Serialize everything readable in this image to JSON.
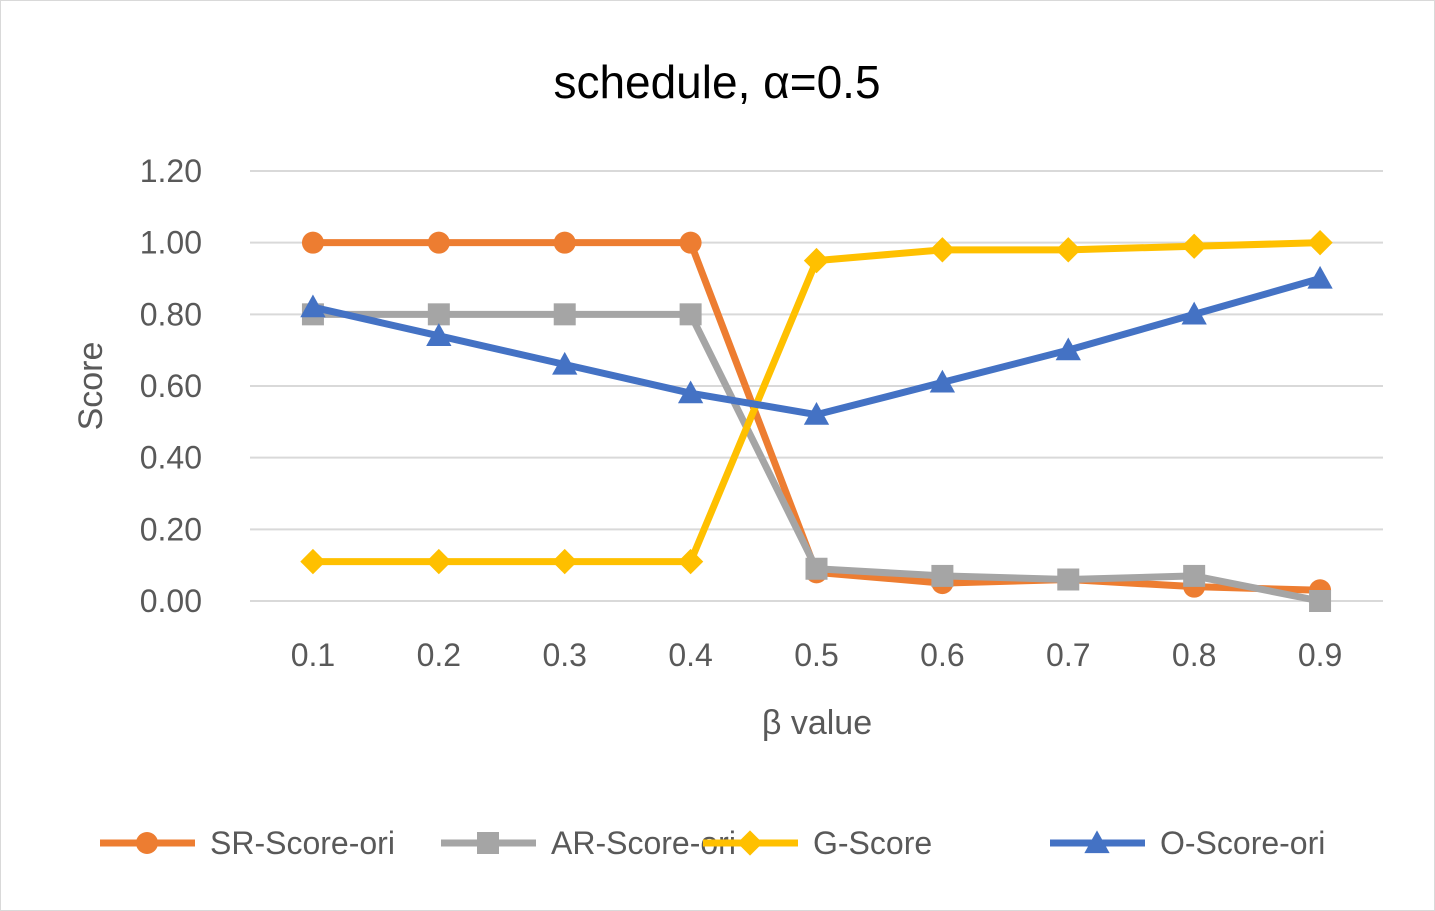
{
  "chart_data": {
    "type": "line",
    "title": "schedule, α=0.5",
    "xlabel": "β value",
    "ylabel": "Score",
    "categories": [
      "0.1",
      "0.2",
      "0.3",
      "0.4",
      "0.5",
      "0.6",
      "0.7",
      "0.8",
      "0.9"
    ],
    "ylim": [
      0,
      1.2
    ],
    "yticks": [
      "0.00",
      "0.20",
      "0.40",
      "0.60",
      "0.80",
      "1.00",
      "1.20"
    ],
    "grid": true,
    "legend_position": "bottom",
    "series": [
      {
        "name": "SR-Score-ori",
        "color": "#ED7D31",
        "marker": "circle",
        "values": [
          1.0,
          1.0,
          1.0,
          1.0,
          0.08,
          0.05,
          0.06,
          0.04,
          0.03
        ]
      },
      {
        "name": "AR-Score-ori",
        "color": "#A5A5A5",
        "marker": "square",
        "values": [
          0.8,
          0.8,
          0.8,
          0.8,
          0.09,
          0.07,
          0.06,
          0.07,
          0.0
        ]
      },
      {
        "name": "G-Score",
        "color": "#FFC000",
        "marker": "diamond",
        "values": [
          0.11,
          0.11,
          0.11,
          0.11,
          0.95,
          0.98,
          0.98,
          0.99,
          1.0
        ]
      },
      {
        "name": "O-Score-ori",
        "color": "#4472C4",
        "marker": "triangle",
        "values": [
          0.82,
          0.74,
          0.66,
          0.58,
          0.52,
          0.61,
          0.7,
          0.8,
          0.9
        ]
      }
    ]
  }
}
